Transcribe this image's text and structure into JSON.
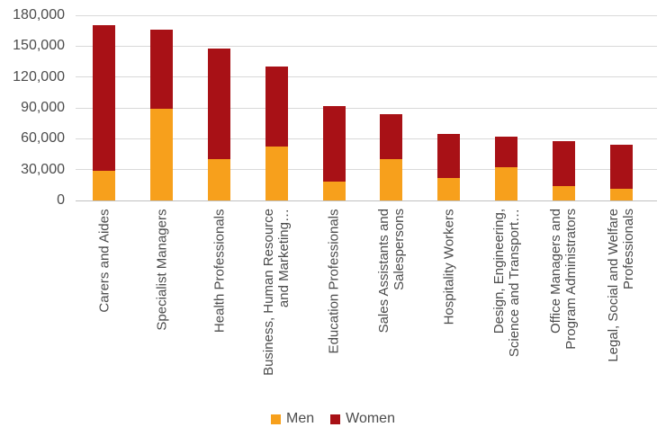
{
  "chart_data": {
    "type": "bar",
    "stacked": true,
    "orientation": "vertical",
    "title": "",
    "xlabel": "",
    "ylabel": "",
    "categories": [
      "Carers and Aides",
      "Specialist Managers",
      "Health Professionals",
      "Business, Human Resource and Marketing…",
      "Education Professionals",
      "Sales Assistants and Salespersons",
      "Hospitality Workers",
      "Design, Engineering, Science and Transport…",
      "Office Managers and Program Administrators",
      "Legal, Social and Welfare Professionals"
    ],
    "category_label_lines": [
      [
        "Carers and Aides"
      ],
      [
        "Specialist Managers"
      ],
      [
        "Health Professionals"
      ],
      [
        "Business, Human Resource",
        "and Marketing…"
      ],
      [
        "Education Professionals"
      ],
      [
        "Sales Assistants and",
        "Salespersons"
      ],
      [
        "Hospitality Workers"
      ],
      [
        "Design, Engineering,",
        "Science and Transport…"
      ],
      [
        "Office Managers and",
        "Program Administrators"
      ],
      [
        "Legal, Social and Welfare",
        "Professionals"
      ]
    ],
    "series": [
      {
        "name": "Men",
        "color": "#F7A01C",
        "values": [
          29000,
          89000,
          40000,
          52000,
          18000,
          40000,
          22000,
          32000,
          14000,
          11000
        ]
      },
      {
        "name": "Women",
        "color": "#A81116",
        "values": [
          141000,
          77000,
          108000,
          78000,
          74000,
          44000,
          43000,
          30000,
          44000,
          43000
        ]
      }
    ],
    "totals": [
      170000,
      166000,
      148000,
      130000,
      92000,
      84000,
      65000,
      62000,
      58000,
      54000
    ],
    "ylim": [
      0,
      180000
    ],
    "ytick_step": 30000,
    "ytick_labels": [
      "0",
      "30,000",
      "60,000",
      "90,000",
      "120,000",
      "150,000",
      "180,000"
    ],
    "grid": true,
    "legend_position": "bottom"
  },
  "colors": {
    "men": "#F7A01C",
    "women": "#A81116",
    "gridline": "#d9d9d9",
    "axis_line": "#c0c0c0",
    "text": "#4c4c4c",
    "background": "#ffffff"
  }
}
